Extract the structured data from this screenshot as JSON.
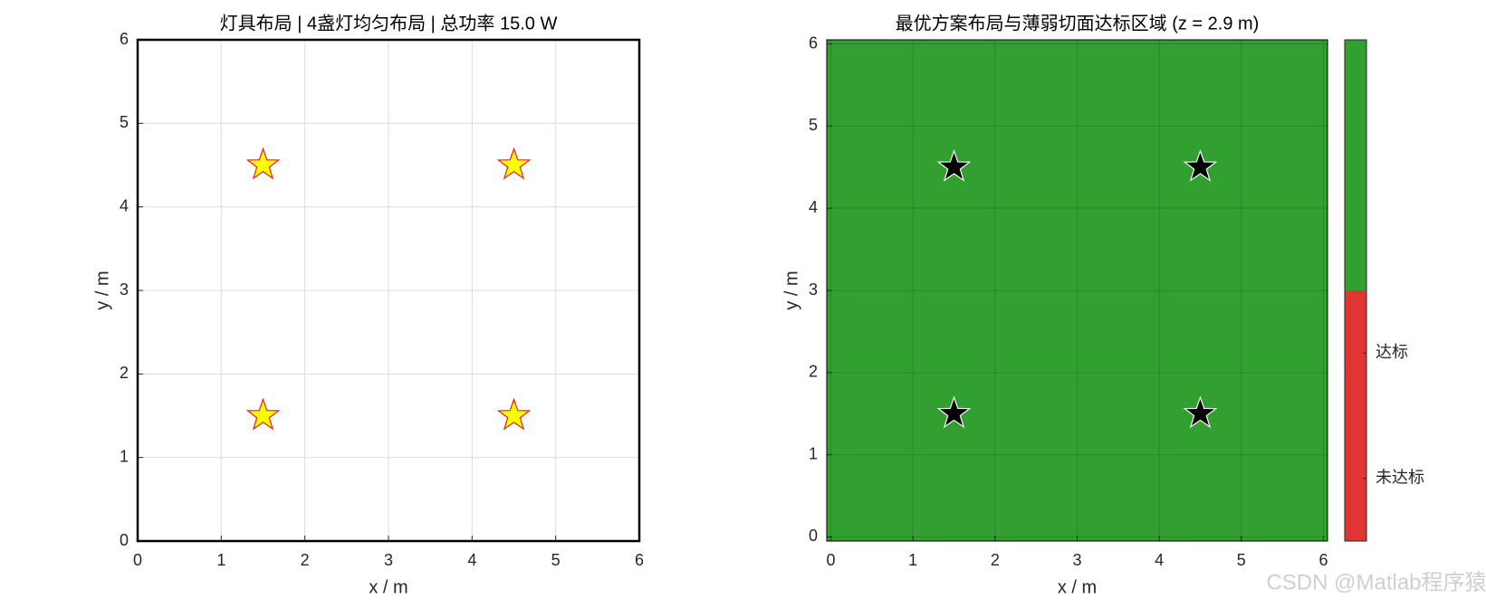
{
  "chart_data": [
    {
      "type": "scatter",
      "title": "灯具布局  |  4盏灯均匀布局  |  总功率 15.0 W",
      "xlabel": "x / m",
      "ylabel": "y / m",
      "xlim": [
        0,
        6
      ],
      "ylim": [
        0,
        6
      ],
      "xticks": [
        0,
        1,
        2,
        3,
        4,
        5,
        6
      ],
      "yticks": [
        0,
        1,
        2,
        3,
        4,
        5,
        6
      ],
      "grid": true,
      "background": "#ffffff",
      "series": [
        {
          "x": [
            1.5,
            4.5,
            1.5,
            4.5
          ],
          "values": [
            4.5,
            4.5,
            1.5,
            1.5
          ],
          "color": "#ffff00",
          "edge_color": "#e02020"
        }
      ]
    },
    {
      "type": "scatter",
      "title": "最优方案布局与薄弱切面达标区域  (z = 2.9 m)",
      "xlabel": "x / m",
      "ylabel": "y / m",
      "xlim": [
        -0.05,
        6.05
      ],
      "ylim": [
        -0.05,
        6.05
      ],
      "xticks": [
        0,
        1,
        2,
        3,
        4,
        5,
        6
      ],
      "yticks": [
        0,
        1,
        2,
        3,
        4,
        5,
        6
      ],
      "grid": true,
      "background": "#31a031",
      "series": [
        {
          "x": [
            1.5,
            4.5,
            1.5,
            4.5
          ],
          "values": [
            4.5,
            4.5,
            1.5,
            1.5
          ],
          "color": "#000000",
          "edge_color": "#ffffff"
        }
      ],
      "colorbar": {
        "lim": [
          0,
          2
        ],
        "segments": [
          [
            0,
            1
          ],
          [
            1,
            2
          ]
        ],
        "colors": [
          "#e03535",
          "#31a031"
        ],
        "ticks": [
          {
            "value": 0.25,
            "label": "未达标"
          },
          {
            "value": 0.75,
            "label": "达标"
          }
        ]
      }
    }
  ],
  "watermark": "CSDN @Matlab程序猿"
}
